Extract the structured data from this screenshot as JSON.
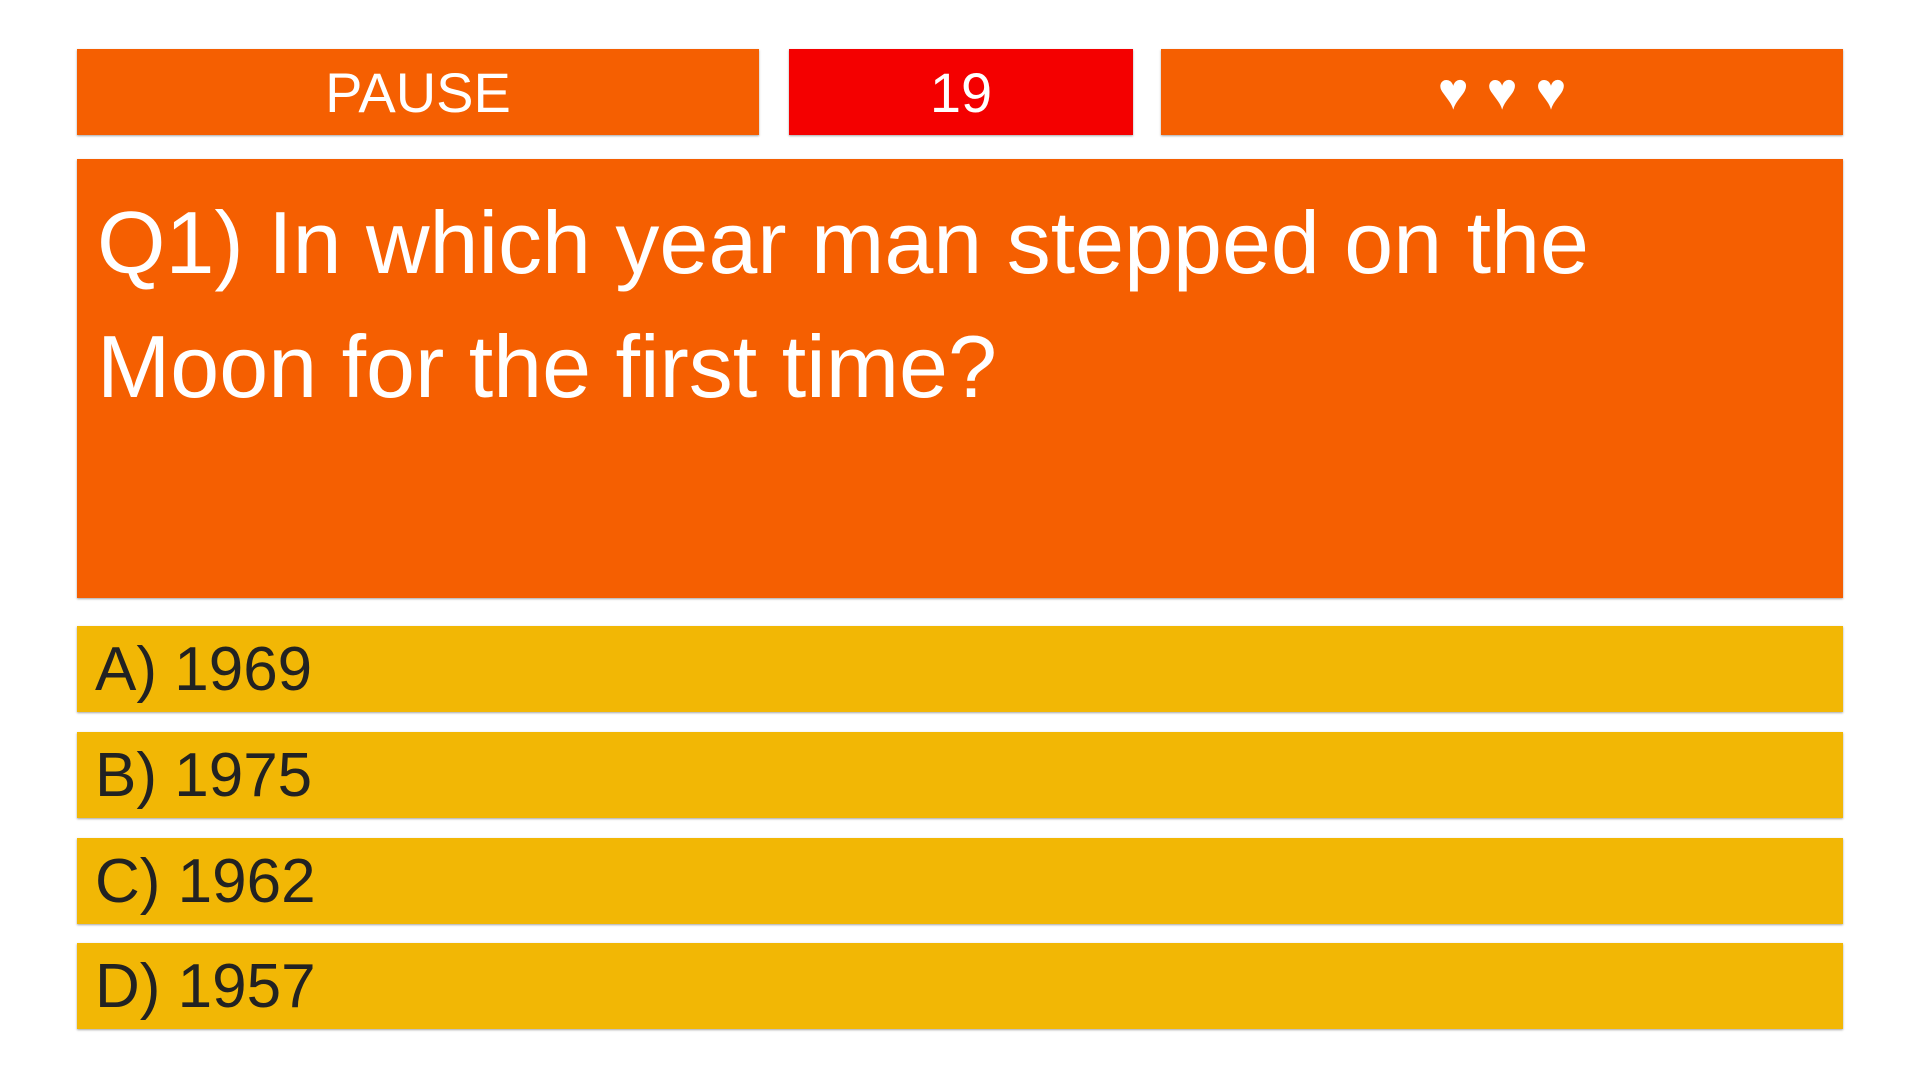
{
  "header": {
    "pause_label": "PAUSE",
    "timer": "19",
    "lives": 3,
    "lives_icon": "heart-icon",
    "hearts": [
      "♥",
      "♥",
      "♥"
    ]
  },
  "question": {
    "text": "Q1) In which year man stepped on the Moon for the first time?"
  },
  "answers": [
    {
      "label": "A) 1969"
    },
    {
      "label": "B) 1975"
    },
    {
      "label": "C) 1962"
    },
    {
      "label": "D) 1957"
    }
  ],
  "colors": {
    "orange": "#f55f01",
    "timer_red": "#f40000",
    "answer_yellow": "#f2b705"
  }
}
